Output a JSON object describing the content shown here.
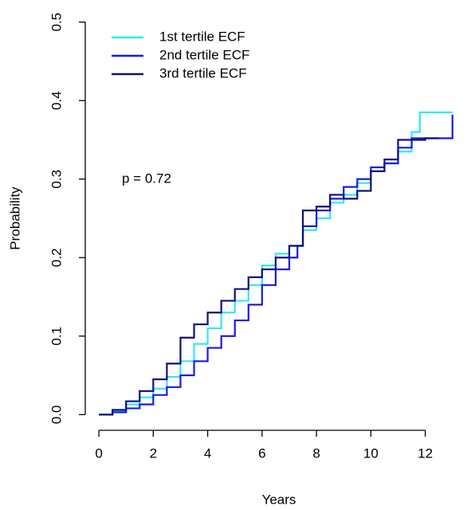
{
  "chart_data": {
    "type": "step",
    "x_label": "Years",
    "y_label": "Probability",
    "annotation": "p = 0.72",
    "xlim": [
      -0.5,
      13.3
    ],
    "ylim": [
      -0.02,
      0.52
    ],
    "xticks": [
      0,
      2,
      4,
      6,
      8,
      10,
      12
    ],
    "yticks": [
      {
        "value": 0,
        "label": "0.0"
      },
      0.1,
      0.2,
      0.3,
      0.4,
      0.5
    ],
    "series": [
      {
        "name": "1st tertile ECF",
        "color": "#33e6f2",
        "x": [
          0,
          0.5,
          1,
          1.5,
          2,
          2.5,
          3,
          3.5,
          4,
          4.5,
          5,
          5.5,
          6,
          6.5,
          7,
          7.5,
          8,
          8.5,
          9,
          9.5,
          10,
          10.5,
          11,
          11.5,
          11.8,
          13
        ],
        "values": [
          0,
          0.005,
          0.013,
          0.022,
          0.033,
          0.048,
          0.068,
          0.09,
          0.11,
          0.13,
          0.145,
          0.165,
          0.19,
          0.205,
          0.215,
          0.235,
          0.25,
          0.27,
          0.28,
          0.295,
          0.31,
          0.32,
          0.335,
          0.36,
          0.385,
          0.385
        ]
      },
      {
        "name": "2nd tertile ECF",
        "color": "#1a1ae6",
        "x": [
          0,
          0.5,
          1,
          1.5,
          2,
          2.5,
          3,
          3.5,
          4,
          4.5,
          5,
          5.5,
          6,
          6.5,
          7,
          7.3,
          7.5,
          8,
          8.5,
          9,
          9.5,
          10,
          10.5,
          11,
          11.5,
          13
        ],
        "values": [
          0,
          0.003,
          0.008,
          0.013,
          0.025,
          0.035,
          0.05,
          0.068,
          0.085,
          0.1,
          0.12,
          0.14,
          0.165,
          0.185,
          0.2,
          0.215,
          0.24,
          0.26,
          0.275,
          0.29,
          0.3,
          0.315,
          0.32,
          0.34,
          0.352,
          0.382
        ]
      },
      {
        "name": "3rd tertile ECF",
        "color": "#10107a",
        "x": [
          0,
          0.5,
          1,
          1.5,
          2,
          2.5,
          3,
          3.5,
          4,
          4.5,
          5,
          5.5,
          6,
          6.5,
          7,
          7.2,
          7.5,
          8,
          8.5,
          9,
          9.5,
          10,
          10.5,
          11,
          12,
          12.5
        ],
        "values": [
          0,
          0.006,
          0.017,
          0.03,
          0.045,
          0.065,
          0.098,
          0.115,
          0.13,
          0.145,
          0.16,
          0.175,
          0.185,
          0.2,
          0.215,
          0.215,
          0.26,
          0.265,
          0.28,
          0.275,
          0.285,
          0.31,
          0.325,
          0.35,
          0.352,
          0.352
        ]
      }
    ]
  }
}
